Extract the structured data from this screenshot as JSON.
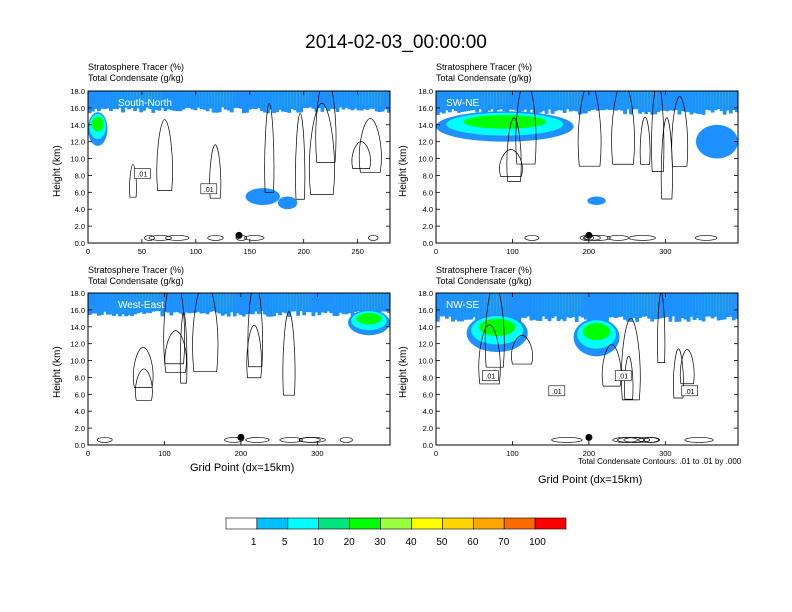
{
  "title": "2014-02-03_00:00:00",
  "panel_title_line1": "Stratosphere Tracer   (%)",
  "panel_title_line2": "Total Condensate   (g/kg)",
  "y_axis_label": "Height (km)",
  "x_axis_label": "Grid Point (dx=15km)",
  "contour_note": "Total Condensate Contours: .01 to .01 by .000",
  "contour_label": ".01",
  "colorbar": {
    "levels": [
      "1",
      "5",
      "10",
      "20",
      "30",
      "40",
      "50",
      "60",
      "70",
      "100"
    ],
    "colors": [
      "#ffffff",
      "#1e90ff",
      "#00bfff",
      "#00ffff",
      "#00e57f",
      "#00ff00",
      "#9aff3c",
      "#ffff00",
      "#ffd700",
      "#ffa500",
      "#ff6a00",
      "#ff0000"
    ]
  },
  "chart_data": [
    {
      "type": "heatmap",
      "name": "South-North",
      "ylim": [
        0,
        18
      ],
      "yticks": [
        "0.0",
        "2.0",
        "4.0",
        "6.0",
        "8.0",
        "10.0",
        "12.0",
        "14.0",
        "16.0",
        "18.0"
      ],
      "xlim": [
        0,
        280
      ],
      "xticks": [
        0,
        50,
        100,
        150,
        200,
        250
      ],
      "xtick_labels": [
        "0",
        "50",
        "100",
        "150",
        "200",
        "250"
      ],
      "tracer_base_km": 15.8,
      "features": [
        {
          "kind": "layer",
          "x": [
            0,
            18
          ],
          "y_km": [
            11.5,
            15.5
          ]
        },
        {
          "kind": "blob",
          "x": [
            146,
            178
          ],
          "y_km": [
            4.5,
            6.5
          ]
        },
        {
          "kind": "blob",
          "x": [
            176,
            194
          ],
          "y_km": [
            4.0,
            5.5
          ]
        }
      ],
      "contour_labels": [
        ".01",
        ".01"
      ]
    },
    {
      "type": "heatmap",
      "name": "SW-NE",
      "ylim": [
        0,
        18
      ],
      "yticks": [
        "0.0",
        "2.0",
        "4.0",
        "6.0",
        "8.0",
        "10.0",
        "12.0",
        "14.0",
        "16.0",
        "18.0"
      ],
      "xlim": [
        0,
        395
      ],
      "xticks": [
        0,
        100,
        200,
        300
      ],
      "xtick_labels": [
        "0",
        "100",
        "200",
        "300"
      ],
      "tracer_base_km": 15.6,
      "features": [
        {
          "kind": "layer",
          "x": [
            0,
            180
          ],
          "y_km": [
            12.0,
            15.6
          ]
        },
        {
          "kind": "blob",
          "x": [
            198,
            222
          ],
          "y_km": [
            4.5,
            5.5
          ]
        },
        {
          "kind": "blob",
          "x": [
            340,
            395
          ],
          "y_km": [
            10.0,
            14.0
          ]
        }
      ],
      "contour_labels": []
    },
    {
      "type": "heatmap",
      "name": "West-East",
      "ylim": [
        0,
        18
      ],
      "yticks": [
        "0.0",
        "2.0",
        "4.0",
        "6.0",
        "8.0",
        "10.0",
        "12.0",
        "14.0",
        "16.0",
        "18.0"
      ],
      "xlim": [
        0,
        395
      ],
      "xticks": [
        0,
        100,
        200,
        300
      ],
      "xtick_labels": [
        "0",
        "100",
        "200",
        "300"
      ],
      "tracer_base_km": 15.6,
      "features": [
        {
          "kind": "layer",
          "x": [
            340,
            395
          ],
          "y_km": [
            13.0,
            16.0
          ]
        }
      ],
      "contour_labels": []
    },
    {
      "type": "heatmap",
      "name": "NW-SE",
      "ylim": [
        0,
        18
      ],
      "yticks": [
        "0.0",
        "2.0",
        "4.0",
        "6.0",
        "8.0",
        "10.0",
        "12.0",
        "14.0",
        "16.0",
        "18.0"
      ],
      "xlim": [
        0,
        395
      ],
      "xticks": [
        0,
        100,
        200,
        300
      ],
      "xtick_labels": [
        "0",
        "100",
        "200",
        "300"
      ],
      "tracer_base_km": 15.0,
      "features": [
        {
          "kind": "layer",
          "x": [
            40,
            120
          ],
          "y_km": [
            11.0,
            15.5
          ]
        },
        {
          "kind": "layer",
          "x": [
            180,
            240
          ],
          "y_km": [
            10.5,
            15.0
          ]
        }
      ],
      "contour_labels": [
        ".01",
        ".01",
        ".01",
        ".01"
      ]
    }
  ]
}
